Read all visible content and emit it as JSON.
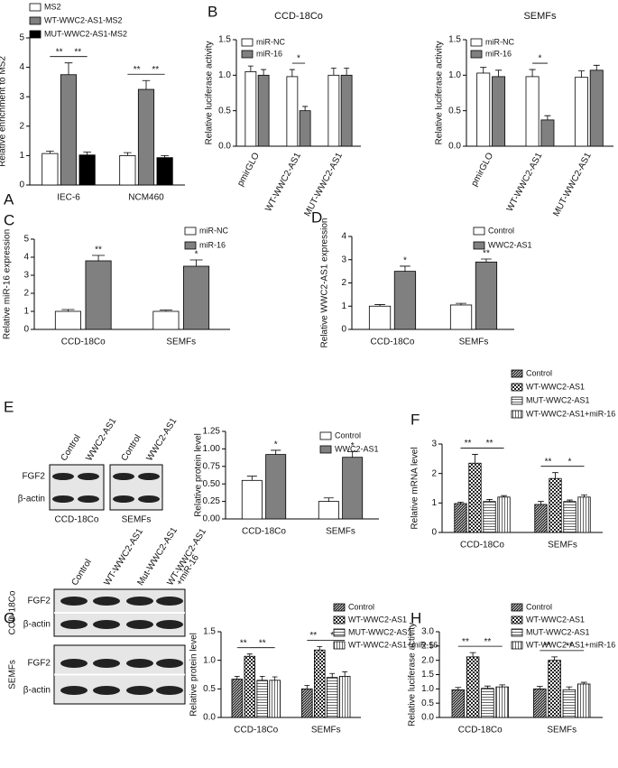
{
  "panels": [
    "A",
    "B",
    "C",
    "D",
    "E",
    "F",
    "G",
    "H"
  ],
  "blots": [
    {
      "lanes": [
        "Control",
        "WWC2-AS1",
        "Control",
        "WWC2-AS1"
      ],
      "rows": [
        "FGF2",
        "β-actin"
      ],
      "groups": [
        "CCD-18Co",
        "SEMFs"
      ]
    },
    {
      "lanes": [
        "Control",
        "WT-WWC2-AS1",
        "Mut-WWC2-AS1",
        [
          "WT-WWC2-AS1",
          "+miR-16"
        ]
      ],
      "rows": [
        "FGF2",
        "β-actin",
        "FGF2",
        "β-actin"
      ],
      "groups": [
        "CCD-18Co",
        "SEMFs"
      ]
    }
  ],
  "chart_data": [
    {
      "type": "bar",
      "ylabel": "Relative enrichment to MS2",
      "categories": [
        "IEC-6",
        "NCM460"
      ],
      "ylim": [
        0,
        5
      ],
      "yticks": [
        0,
        1,
        2,
        3,
        4,
        5
      ],
      "series": [
        {
          "name": "MS2",
          "color": "#ffffff",
          "values": [
            1.07,
            1.0
          ],
          "errors": [
            0.08,
            0.1
          ],
          "significance": [
            "**",
            "**"
          ]
        },
        {
          "name": "WT-WWC2-AS1-MS2",
          "color": "#808080",
          "values": [
            3.75,
            3.25
          ],
          "errors": [
            0.4,
            0.3
          ]
        },
        {
          "name": "MUT-WWC2-AS1-MS2",
          "color": "#000000",
          "values": [
            1.02,
            0.93
          ],
          "errors": [
            0.1,
            0.07
          ],
          "significance": [
            "**",
            "**"
          ]
        }
      ]
    },
    {
      "type": "bar",
      "title": "CCD-18Co",
      "ylabel": "Relative luciferase activity",
      "categories": [
        "pmirGLO",
        "WT-WWC2-AS1",
        "MUT-WWC2-AS1"
      ],
      "ylim": [
        0,
        1.5
      ],
      "yticks": [
        {
          "value": 0,
          "label": "0.0"
        },
        {
          "value": 0.5,
          "label": "0.5"
        },
        {
          "value": 1,
          "label": "1.0"
        },
        {
          "value": 1.5,
          "label": "1.5"
        }
      ],
      "series": [
        {
          "name": "miR-NC",
          "color": "#ffffff",
          "values": [
            1.05,
            0.98,
            1.0
          ],
          "errors": [
            0.08,
            0.1,
            0.1
          ]
        },
        {
          "name": "miR-16",
          "color": "#808080",
          "values": [
            1.0,
            0.5,
            1.0
          ],
          "errors": [
            0.08,
            0.06,
            0.1
          ],
          "significance": [
            null,
            "*",
            null
          ]
        }
      ]
    },
    {
      "type": "bar",
      "title": "SEMFs",
      "ylabel": "Relative luciferase activity",
      "categories": [
        "pmirGLO",
        "WT-WWC2-AS1",
        "MUT-WWC2-AS1"
      ],
      "ylim": [
        0,
        1.5
      ],
      "yticks": [
        {
          "value": 0,
          "label": "0.0"
        },
        {
          "value": 0.5,
          "label": "0.5"
        },
        {
          "value": 1,
          "label": "1.0"
        },
        {
          "value": 1.5,
          "label": "1.5"
        }
      ],
      "series": [
        {
          "name": "miR-NC",
          "color": "#ffffff",
          "values": [
            1.03,
            0.98,
            0.97
          ],
          "errors": [
            0.08,
            0.1,
            0.09
          ]
        },
        {
          "name": "miR-16",
          "color": "#808080",
          "values": [
            0.98,
            0.37,
            1.07
          ],
          "errors": [
            0.09,
            0.06,
            0.07
          ],
          "significance": [
            null,
            "*",
            null
          ]
        }
      ]
    },
    {
      "type": "bar",
      "ylabel": "Relative miR-16 expression",
      "categories": [
        "CCD-18Co",
        "SEMFs"
      ],
      "ylim": [
        0,
        5
      ],
      "yticks": [
        0,
        1,
        2,
        3,
        4,
        5
      ],
      "series": [
        {
          "name": "miR-NC",
          "color": "#ffffff",
          "values": [
            1.0,
            1.0
          ],
          "errors": [
            0.1,
            0.07
          ]
        },
        {
          "name": "miR-16",
          "color": "#808080",
          "values": [
            3.8,
            3.5
          ],
          "errors": [
            0.3,
            0.35
          ],
          "significance": [
            "**",
            "*"
          ]
        }
      ]
    },
    {
      "type": "bar",
      "ylabel": "Relative WWC2-AS1 expression",
      "categories": [
        "CCD-18Co",
        "SEMFs"
      ],
      "ylim": [
        0,
        4
      ],
      "yticks": [
        0,
        1,
        2,
        3,
        4
      ],
      "series": [
        {
          "name": "Control",
          "color": "#ffffff",
          "values": [
            1.0,
            1.05
          ],
          "errors": [
            0.07,
            0.07
          ]
        },
        {
          "name": "WWC2-AS1",
          "color": "#808080",
          "values": [
            2.5,
            2.9
          ],
          "errors": [
            0.22,
            0.13
          ],
          "significance": [
            "*",
            "**"
          ]
        }
      ]
    },
    {
      "type": "bar",
      "ylabel": "Relative protein level",
      "categories": [
        "CCD-18Co",
        "SEMFs"
      ],
      "ylim": [
        0,
        1.25
      ],
      "yticks": [
        {
          "value": 0,
          "label": "0.00"
        },
        {
          "value": 0.25,
          "label": "0.25"
        },
        {
          "value": 0.5,
          "label": "0.50"
        },
        {
          "value": 0.75,
          "label": "0.75"
        },
        {
          "value": 1,
          "label": "1.00"
        },
        {
          "value": 1.25,
          "label": "1.25"
        }
      ],
      "series": [
        {
          "name": "Control",
          "color": "#ffffff",
          "values": [
            0.55,
            0.25
          ],
          "errors": [
            0.06,
            0.05
          ]
        },
        {
          "name": "WWC2-AS1",
          "color": "#808080",
          "values": [
            0.92,
            0.88
          ],
          "errors": [
            0.06,
            0.08
          ],
          "significance": [
            "*",
            "*"
          ]
        }
      ]
    },
    {
      "type": "bar",
      "ylabel": "Relative mRNA level",
      "categories": [
        "CCD-18Co",
        "SEMFs"
      ],
      "ylim": [
        0,
        3
      ],
      "yticks": [
        0,
        1,
        2,
        3
      ],
      "series": [
        {
          "name": "Control",
          "color": "#333333",
          "pattern": "diagonal",
          "values": [
            0.98,
            0.95
          ],
          "errors": [
            0.05,
            0.1
          ],
          "significance": [
            "**",
            "**"
          ]
        },
        {
          "name": "WT-WWC2-AS1",
          "color": "#222222",
          "pattern": "checker",
          "values": [
            2.35,
            1.83
          ],
          "errors": [
            0.3,
            0.2
          ]
        },
        {
          "name": "MUT-WWC2-AS1",
          "color": "#444444",
          "pattern": "horizontal",
          "values": [
            1.05,
            1.05
          ],
          "errors": [
            0.07,
            0.05
          ]
        },
        {
          "name": "WT-WWC2-AS1+miR-16",
          "color": "#444444",
          "pattern": "vertical",
          "values": [
            1.2,
            1.2
          ],
          "errors": [
            0.05,
            0.07
          ],
          "significance": [
            "**",
            "*"
          ]
        }
      ]
    },
    {
      "type": "bar",
      "ylabel": "Relative protein level",
      "categories": [
        "CCD-18Co",
        "SEMFs"
      ],
      "ylim": [
        0,
        1.5
      ],
      "yticks": [
        {
          "value": 0,
          "label": "0.0"
        },
        {
          "value": 0.5,
          "label": "0.5"
        },
        {
          "value": 1,
          "label": "1.0"
        },
        {
          "value": 1.5,
          "label": "1.5"
        }
      ],
      "series": [
        {
          "name": "Control",
          "color": "#333333",
          "pattern": "diagonal",
          "values": [
            0.67,
            0.5
          ],
          "errors": [
            0.05,
            0.06
          ],
          "significance": [
            "**",
            "**"
          ]
        },
        {
          "name": "WT-WWC2-AS1",
          "color": "#222222",
          "pattern": "checker",
          "values": [
            1.07,
            1.18
          ],
          "errors": [
            0.04,
            0.06
          ]
        },
        {
          "name": "MUT-WWC2-AS1",
          "color": "#444444",
          "pattern": "horizontal",
          "values": [
            0.65,
            0.7
          ],
          "errors": [
            0.07,
            0.07
          ]
        },
        {
          "name": "WT-WWC2-AS1+miR-16",
          "color": "#444444",
          "pattern": "vertical",
          "values": [
            0.65,
            0.72
          ],
          "errors": [
            0.06,
            0.08
          ],
          "significance": [
            "**",
            "*"
          ]
        }
      ]
    },
    {
      "type": "bar",
      "ylabel": "Relative luciferase activity",
      "categories": [
        "CCD-18Co",
        "SEMFs"
      ],
      "ylim": [
        0,
        3
      ],
      "yticks": [
        {
          "value": 0,
          "label": "0.0"
        },
        {
          "value": 0.5,
          "label": "0.5"
        },
        {
          "value": 1,
          "label": "1.0"
        },
        {
          "value": 1.5,
          "label": "1.5"
        },
        {
          "value": 2,
          "label": "2.0"
        },
        {
          "value": 2.5,
          "label": "2.5"
        },
        {
          "value": 3,
          "label": "3.0"
        }
      ],
      "series": [
        {
          "name": "Control",
          "color": "#333333",
          "pattern": "diagonal",
          "values": [
            0.97,
            1.0
          ],
          "errors": [
            0.08,
            0.09
          ],
          "significance": [
            "**",
            "**"
          ]
        },
        {
          "name": "WT-WWC2-AS1",
          "color": "#222222",
          "pattern": "checker",
          "values": [
            2.12,
            2.0
          ],
          "errors": [
            0.15,
            0.12
          ]
        },
        {
          "name": "MUT-WWC2-AS1",
          "color": "#444444",
          "pattern": "horizontal",
          "values": [
            1.02,
            0.97
          ],
          "errors": [
            0.08,
            0.1
          ]
        },
        {
          "name": "WT-WWC2-AS1+miR-16",
          "color": "#444444",
          "pattern": "vertical",
          "values": [
            1.07,
            1.17
          ],
          "errors": [
            0.07,
            0.06
          ],
          "significance": [
            "**",
            "**"
          ]
        }
      ]
    }
  ]
}
